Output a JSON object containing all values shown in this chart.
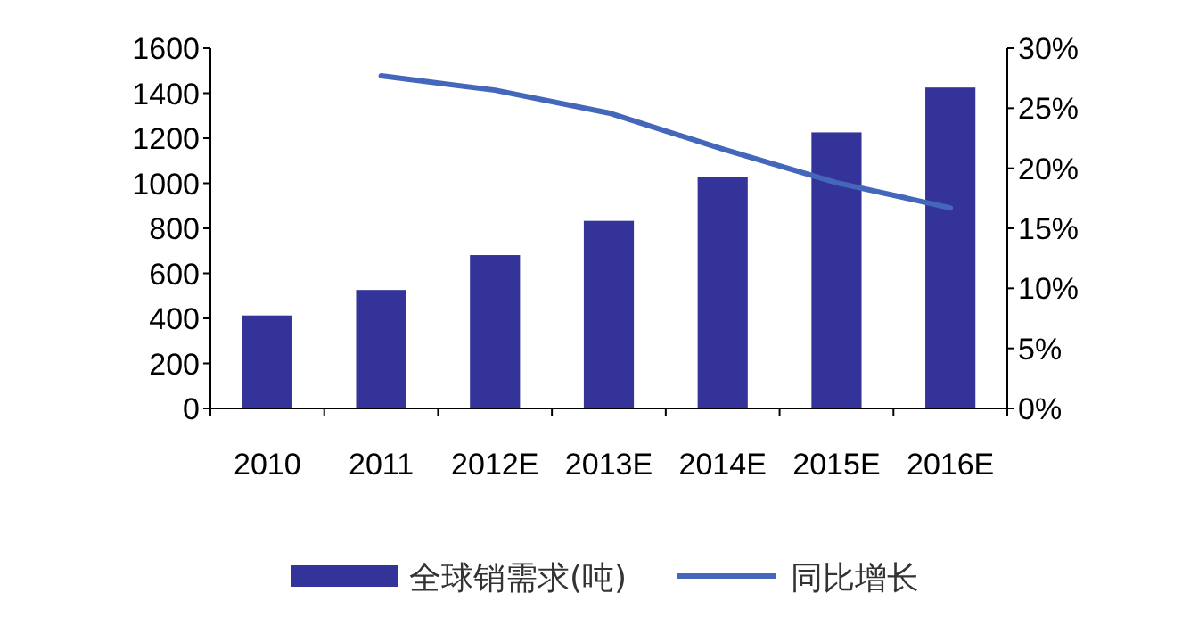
{
  "chart_data": {
    "type": "bar",
    "categories": [
      "2010",
      "2011",
      "2012E",
      "2013E",
      "2014E",
      "2015E",
      "2016E"
    ],
    "series": [
      {
        "name": "全球销需求(吨)",
        "color": "#333399",
        "values": [
          413,
          526,
          681,
          833,
          1028,
          1226,
          1425
        ]
      },
      {
        "name": "同比增长",
        "type": "line",
        "axis": "y2",
        "color": "#4466bb",
        "values": [
          null,
          27.7,
          26.5,
          24.6,
          21.6,
          18.8,
          16.7
        ]
      }
    ],
    "ylim": [
      0,
      1600
    ],
    "yticks": [
      0,
      200,
      400,
      600,
      800,
      1000,
      1200,
      1400,
      1600
    ],
    "y2lim": [
      0,
      30
    ],
    "y2ticks": [
      {
        "value": 0,
        "label": "0%"
      },
      {
        "value": 5,
        "label": "5%"
      },
      {
        "value": 10,
        "label": "10%"
      },
      {
        "value": 15,
        "label": "15%"
      },
      {
        "value": 20,
        "label": "20%"
      },
      {
        "value": 25,
        "label": "25%"
      },
      {
        "value": 30,
        "label": "30%"
      }
    ],
    "legend": "bottom",
    "line_style": "solid",
    "marker": "none"
  }
}
